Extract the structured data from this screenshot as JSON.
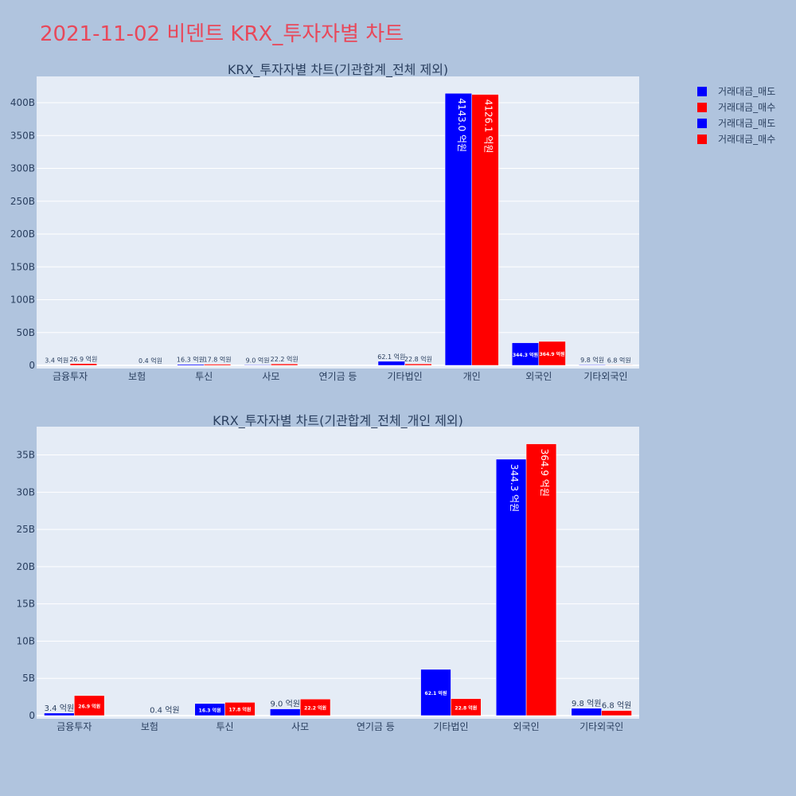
{
  "page": {
    "title": "2021-11-02 비덴트 KRX_투자자별 차트"
  },
  "legend": {
    "items": [
      {
        "label": "거래대금_매도",
        "color": "#0000ff"
      },
      {
        "label": "거래대금_매수",
        "color": "#ff0000"
      },
      {
        "label": "거래대금_매도",
        "color": "#0000ff"
      },
      {
        "label": "거래대금_매수",
        "color": "#ff0000"
      }
    ]
  },
  "chart_data": [
    {
      "type": "bar",
      "title": "KRX_투자자별 차트(기관합계_전체 제외)",
      "categories": [
        "금융투자",
        "보험",
        "투신",
        "사모",
        "연기금 등",
        "기타법인",
        "개인",
        "외국인",
        "기타외국인"
      ],
      "ylim": [
        0,
        440
      ],
      "yticks": [
        0,
        50,
        100,
        150,
        200,
        250,
        300,
        350,
        400
      ],
      "ytick_labels": [
        "0",
        "50B",
        "100B",
        "150B",
        "200B",
        "250B",
        "300B",
        "350B",
        "400B"
      ],
      "grid": true,
      "series": [
        {
          "name": "거래대금_매도",
          "color": "#0000ff",
          "values": [
            0.34,
            0,
            1.63,
            0.9,
            null,
            6.21,
            414.3,
            34.43,
            0.98
          ],
          "labels": [
            "3.4 억원",
            "",
            "16.3 억원",
            "9.0 억원",
            "",
            "62.1 억원",
            "4143.0 억원",
            "344.3 억원",
            "9.8 억원"
          ]
        },
        {
          "name": "거래대금_매수",
          "color": "#ff0000",
          "values": [
            2.69,
            0.04,
            1.78,
            2.22,
            null,
            2.28,
            412.61,
            36.49,
            0.68
          ],
          "labels": [
            "26.9 억원",
            "0.4 억원",
            "17.8 억원",
            "22.2 억원",
            "",
            "22.8 억원",
            "4126.1 억원",
            "364.9 억원",
            "6.8 억원"
          ]
        }
      ]
    },
    {
      "type": "bar",
      "title": "KRX_투자자별 차트(기관합계_전체_개인 제외)",
      "categories": [
        "금융투자",
        "보험",
        "투신",
        "사모",
        "연기금 등",
        "기타법인",
        "외국인",
        "기타외국인"
      ],
      "ylim": [
        0,
        38.8
      ],
      "yticks": [
        0,
        5,
        10,
        15,
        20,
        25,
        30,
        35
      ],
      "ytick_labels": [
        "0",
        "5B",
        "10B",
        "15B",
        "20B",
        "25B",
        "30B",
        "35B"
      ],
      "grid": true,
      "series": [
        {
          "name": "거래대금_매도",
          "color": "#0000ff",
          "values": [
            0.34,
            0,
            1.63,
            0.9,
            null,
            6.21,
            34.43,
            0.98
          ],
          "labels": [
            "3.4 억원",
            "",
            "16.3 억원",
            "9.0 억원",
            "",
            "62.1 억원",
            "344.3 억원",
            "9.8 억원"
          ]
        },
        {
          "name": "거래대금_매수",
          "color": "#ff0000",
          "values": [
            2.69,
            0.04,
            1.78,
            2.22,
            null,
            2.28,
            36.49,
            0.68
          ],
          "labels": [
            "26.9 억원",
            "0.4 억원",
            "17.8 억원",
            "22.2 억원",
            "",
            "22.8 억원",
            "364.9 억원",
            "6.8 억원"
          ]
        }
      ]
    }
  ]
}
